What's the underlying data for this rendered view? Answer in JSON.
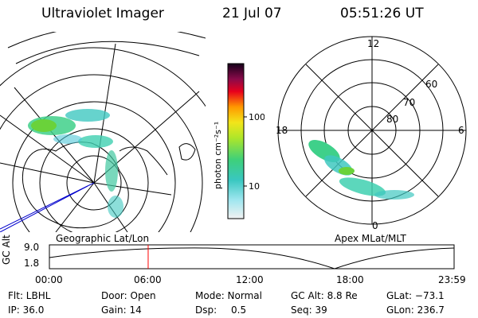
{
  "header": {
    "instrument": "Ultraviolet Imager",
    "date": "21 Jul 07",
    "time": "05:51:26 UT"
  },
  "colorbar": {
    "unit_label": "photon cm⁻²s⁻¹",
    "tick_100": "100",
    "tick_10": "10"
  },
  "left_map": {
    "caption": "Geographic Lat/Lon"
  },
  "right_polar": {
    "caption": "Apex MLat/MLT",
    "mlt_labels": {
      "top": "12",
      "left": "18",
      "right": "6",
      "bottom": "0"
    },
    "lat_labels": [
      "60",
      "70",
      "80"
    ]
  },
  "altitude_plot": {
    "ylabel": "GC Alt",
    "ytick_high": "9.0",
    "ytick_low": "1.8",
    "xticks": [
      "00:00",
      "06:00",
      "12:00",
      "18:00",
      "23:59"
    ],
    "marker_hour": 5.857,
    "marker_color": "#ff0000"
  },
  "info": {
    "row1": {
      "flt": "Flt: LBHL",
      "door": "Door: Open",
      "mode": "Mode: Normal",
      "gc_alt": "GC Alt: 8.8 Re",
      "glat": "GLat: −73.1"
    },
    "row2": {
      "ip": "IP: 36.0",
      "gain": "Gain: 14",
      "dsp_label": "Dsp:",
      "dsp_value": "0.5",
      "seq": "Seq: 39",
      "glon": "GLon: 236.7"
    }
  }
}
